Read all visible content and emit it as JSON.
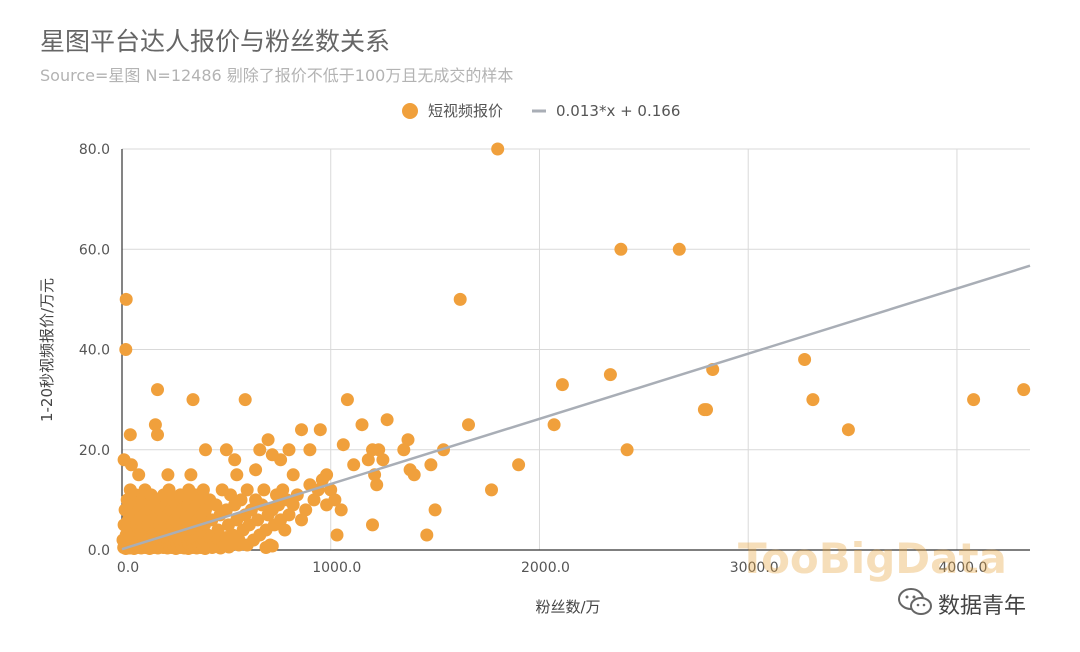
{
  "header": {
    "title": "星图平台达人报价与粉丝数关系",
    "subtitle": "Source=星图 N=12486 剔除了报价不低于100万且无成交的样本"
  },
  "watermark": {
    "brand": "TooBigData",
    "account": "数据青年"
  },
  "colors": {
    "points": "#F0A03C",
    "trendline": "#A9AEB6",
    "grid": "#D9D9D9"
  },
  "chart_data": {
    "type": "scatter",
    "xlabel": "粉丝数/万",
    "ylabel": "1-20秒视频报价/万元",
    "xlim": [
      0,
      4350
    ],
    "ylim": [
      0,
      80
    ],
    "x_ticks": [
      "0.0",
      "1000.0",
      "2000.0",
      "3000.0",
      "4000.0"
    ],
    "y_ticks": [
      "0.0",
      "20.0",
      "40.0",
      "60.0",
      "80.0"
    ],
    "grid": true,
    "legend_position": "top-center",
    "series": [
      {
        "name": "短视频报价",
        "kind": "points",
        "points": [
          [
            20,
            50
          ],
          [
            18,
            40
          ],
          [
            40,
            23
          ],
          [
            170,
            32
          ],
          [
            340,
            30
          ],
          [
            590,
            30
          ],
          [
            160,
            25
          ],
          [
            170,
            23
          ],
          [
            10,
            18
          ],
          [
            45,
            17
          ],
          [
            80,
            15
          ],
          [
            220,
            15
          ],
          [
            330,
            15
          ],
          [
            400,
            20
          ],
          [
            500,
            20
          ],
          [
            540,
            18
          ],
          [
            550,
            15
          ],
          [
            640,
            16
          ],
          [
            660,
            20
          ],
          [
            700,
            22
          ],
          [
            720,
            19
          ],
          [
            760,
            18
          ],
          [
            800,
            20
          ],
          [
            820,
            15
          ],
          [
            860,
            24
          ],
          [
            900,
            20
          ],
          [
            950,
            24
          ],
          [
            980,
            15
          ],
          [
            1020,
            10
          ],
          [
            1060,
            21
          ],
          [
            1080,
            30
          ],
          [
            1110,
            17
          ],
          [
            1150,
            25
          ],
          [
            1180,
            18
          ],
          [
            1200,
            20
          ],
          [
            1210,
            15
          ],
          [
            1230,
            20
          ],
          [
            1250,
            18
          ],
          [
            1270,
            26
          ],
          [
            1350,
            20
          ],
          [
            1370,
            22
          ],
          [
            1380,
            16
          ],
          [
            1400,
            15
          ],
          [
            1050,
            8
          ],
          [
            1030,
            3
          ],
          [
            1200,
            5
          ],
          [
            1220,
            13
          ],
          [
            1460,
            3
          ],
          [
            1480,
            17
          ],
          [
            1500,
            8
          ],
          [
            1540,
            20
          ],
          [
            1620,
            50
          ],
          [
            1660,
            25
          ],
          [
            1770,
            12
          ],
          [
            1800,
            80
          ],
          [
            1900,
            17
          ],
          [
            2070,
            25
          ],
          [
            2110,
            33
          ],
          [
            2340,
            35
          ],
          [
            2390,
            60
          ],
          [
            2420,
            20
          ],
          [
            2670,
            60
          ],
          [
            2790,
            28
          ],
          [
            2800,
            28
          ],
          [
            2830,
            36
          ],
          [
            3270,
            38
          ],
          [
            3310,
            30
          ],
          [
            3480,
            24
          ],
          [
            4080,
            30
          ],
          [
            4320,
            32
          ],
          [
            5,
            2
          ],
          [
            10,
            5
          ],
          [
            15,
            8
          ],
          [
            20,
            3
          ],
          [
            25,
            10
          ],
          [
            30,
            6
          ],
          [
            35,
            1
          ],
          [
            40,
            12
          ],
          [
            45,
            4
          ],
          [
            50,
            7
          ],
          [
            55,
            9
          ],
          [
            60,
            2
          ],
          [
            65,
            11
          ],
          [
            70,
            5
          ],
          [
            75,
            3
          ],
          [
            80,
            8
          ],
          [
            85,
            6
          ],
          [
            90,
            1
          ],
          [
            95,
            10
          ],
          [
            100,
            4
          ],
          [
            105,
            7
          ],
          [
            110,
            12
          ],
          [
            115,
            3
          ],
          [
            120,
            9
          ],
          [
            125,
            5
          ],
          [
            130,
            2
          ],
          [
            135,
            8
          ],
          [
            140,
            11
          ],
          [
            145,
            6
          ],
          [
            150,
            3
          ],
          [
            155,
            9
          ],
          [
            160,
            4
          ],
          [
            165,
            7
          ],
          [
            170,
            1
          ],
          [
            175,
            10
          ],
          [
            180,
            5
          ],
          [
            185,
            8
          ],
          [
            190,
            2
          ],
          [
            195,
            6
          ],
          [
            200,
            11
          ],
          [
            205,
            3
          ],
          [
            210,
            9
          ],
          [
            215,
            4
          ],
          [
            220,
            7
          ],
          [
            225,
            12
          ],
          [
            230,
            2
          ],
          [
            235,
            8
          ],
          [
            240,
            5
          ],
          [
            245,
            10
          ],
          [
            250,
            3
          ],
          [
            255,
            6
          ],
          [
            260,
            9
          ],
          [
            265,
            1
          ],
          [
            270,
            7
          ],
          [
            275,
            4
          ],
          [
            280,
            11
          ],
          [
            285,
            5
          ],
          [
            290,
            8
          ],
          [
            295,
            2
          ],
          [
            300,
            10
          ],
          [
            305,
            6
          ],
          [
            310,
            3
          ],
          [
            315,
            9
          ],
          [
            320,
            12
          ],
          [
            325,
            4
          ],
          [
            330,
            7
          ],
          [
            335,
            1
          ],
          [
            340,
            8
          ],
          [
            345,
            5
          ],
          [
            350,
            11
          ],
          [
            355,
            3
          ],
          [
            360,
            9
          ],
          [
            365,
            6
          ],
          [
            370,
            2
          ],
          [
            375,
            10
          ],
          [
            380,
            4
          ],
          [
            385,
            7
          ],
          [
            390,
            12
          ],
          [
            395,
            5
          ],
          [
            400,
            8
          ],
          [
            410,
            3
          ],
          [
            420,
            10
          ],
          [
            430,
            6
          ],
          [
            440,
            1
          ],
          [
            450,
            9
          ],
          [
            460,
            4
          ],
          [
            470,
            7
          ],
          [
            480,
            12
          ],
          [
            490,
            2
          ],
          [
            500,
            8
          ],
          [
            510,
            5
          ],
          [
            520,
            11
          ],
          [
            530,
            3
          ],
          [
            540,
            9
          ],
          [
            550,
            6
          ],
          [
            560,
            1
          ],
          [
            570,
            10
          ],
          [
            580,
            4
          ],
          [
            590,
            7
          ],
          [
            600,
            12
          ],
          [
            610,
            5
          ],
          [
            620,
            8
          ],
          [
            630,
            2
          ],
          [
            640,
            10
          ],
          [
            650,
            6
          ],
          [
            660,
            3
          ],
          [
            670,
            9
          ],
          [
            680,
            12
          ],
          [
            690,
            4
          ],
          [
            700,
            7
          ],
          [
            710,
            1
          ],
          [
            720,
            8
          ],
          [
            730,
            5
          ],
          [
            740,
            11
          ],
          [
            750,
            9
          ],
          [
            760,
            6
          ],
          [
            770,
            12
          ],
          [
            780,
            4
          ],
          [
            790,
            10
          ],
          [
            800,
            7
          ],
          [
            820,
            9
          ],
          [
            840,
            11
          ],
          [
            860,
            6
          ],
          [
            880,
            8
          ],
          [
            900,
            13
          ],
          [
            920,
            10
          ],
          [
            940,
            12
          ],
          [
            960,
            14
          ],
          [
            980,
            9
          ],
          [
            1000,
            12
          ],
          [
            690,
            0.5
          ],
          [
            720,
            0.8
          ],
          [
            560,
            2
          ],
          [
            600,
            1
          ],
          [
            8,
            0.5
          ],
          [
            12,
            1
          ],
          [
            18,
            0.3
          ],
          [
            22,
            2
          ],
          [
            28,
            0.8
          ],
          [
            33,
            1.5
          ],
          [
            38,
            0.4
          ],
          [
            42,
            2.5
          ],
          [
            48,
            0.6
          ],
          [
            52,
            1.2
          ],
          [
            58,
            0.3
          ],
          [
            62,
            2
          ],
          [
            68,
            1
          ],
          [
            72,
            0.5
          ],
          [
            78,
            1.8
          ],
          [
            82,
            0.7
          ],
          [
            88,
            2.2
          ],
          [
            92,
            0.4
          ],
          [
            98,
            1.3
          ],
          [
            102,
            0.8
          ],
          [
            108,
            2.4
          ],
          [
            112,
            0.5
          ],
          [
            118,
            1.6
          ],
          [
            122,
            0.9
          ],
          [
            128,
            2.1
          ],
          [
            132,
            0.3
          ],
          [
            138,
            1.4
          ],
          [
            142,
            0.7
          ],
          [
            148,
            2.6
          ],
          [
            152,
            0.5
          ],
          [
            158,
            1.1
          ],
          [
            162,
            0.8
          ],
          [
            168,
            2.3
          ],
          [
            172,
            0.4
          ],
          [
            178,
            1.7
          ],
          [
            182,
            0.6
          ],
          [
            188,
            2
          ],
          [
            192,
            1
          ],
          [
            198,
            0.5
          ],
          [
            202,
            1.9
          ],
          [
            208,
            0.7
          ],
          [
            212,
            2.5
          ],
          [
            218,
            0.4
          ],
          [
            222,
            1.2
          ],
          [
            228,
            0.8
          ],
          [
            232,
            2.1
          ],
          [
            238,
            0.5
          ],
          [
            242,
            1.6
          ],
          [
            248,
            0.9
          ],
          [
            252,
            2.4
          ],
          [
            258,
            0.3
          ],
          [
            262,
            1.5
          ],
          [
            268,
            0.7
          ],
          [
            272,
            2.2
          ],
          [
            278,
            0.5
          ],
          [
            282,
            1.3
          ],
          [
            288,
            0.8
          ],
          [
            292,
            2
          ],
          [
            298,
            0.4
          ],
          [
            302,
            1.8
          ],
          [
            308,
            0.6
          ],
          [
            312,
            2.5
          ],
          [
            318,
            0.3
          ],
          [
            322,
            1.1
          ],
          [
            328,
            0.9
          ],
          [
            332,
            2.3
          ],
          [
            338,
            0.5
          ],
          [
            342,
            1.4
          ],
          [
            348,
            0.7
          ],
          [
            352,
            2.1
          ],
          [
            358,
            0.4
          ],
          [
            362,
            1.7
          ],
          [
            368,
            0.8
          ],
          [
            372,
            2.6
          ],
          [
            378,
            0.5
          ],
          [
            382,
            1.2
          ],
          [
            388,
            0.9
          ],
          [
            392,
            2
          ],
          [
            398,
            0.3
          ],
          [
            404,
            1.5
          ],
          [
            412,
            0.7
          ],
          [
            422,
            2.4
          ],
          [
            432,
            0.5
          ],
          [
            442,
            1.3
          ],
          [
            452,
            0.8
          ],
          [
            462,
            2.2
          ],
          [
            472,
            0.4
          ],
          [
            482,
            1.6
          ],
          [
            492,
            0.9
          ],
          [
            502,
            2.5
          ],
          [
            512,
            0.6
          ],
          [
            522,
            1.1
          ]
        ]
      },
      {
        "name": "0.013*x + 0.166",
        "kind": "trendline",
        "slope": 0.013,
        "intercept": 0.166
      }
    ]
  }
}
